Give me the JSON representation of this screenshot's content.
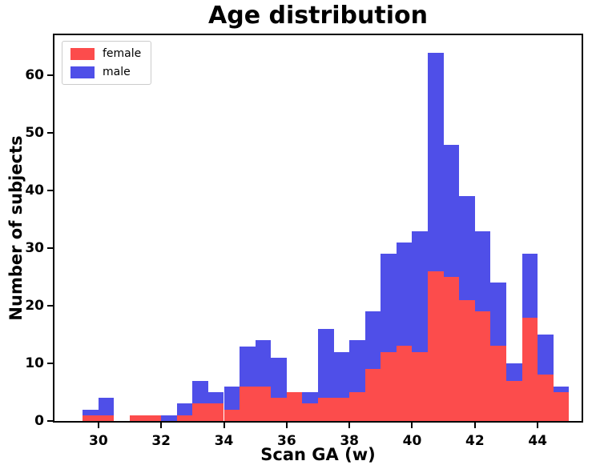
{
  "chart_data": {
    "type": "bar",
    "subtype": "stacked-histogram",
    "title": "Age distribution",
    "xlabel": "Scan GA (w)",
    "ylabel": "Number of subjects",
    "stacked": true,
    "grid": false,
    "legend_position": "upper left",
    "bin_width": 0.5,
    "bin_starts": [
      29.0,
      29.5,
      30.0,
      30.5,
      31.0,
      31.5,
      32.0,
      32.5,
      33.0,
      33.5,
      34.0,
      34.5,
      35.0,
      35.5,
      36.0,
      36.5,
      37.0,
      37.5,
      38.0,
      38.5,
      39.0,
      39.5,
      40.0,
      40.5,
      41.0,
      41.5,
      42.0,
      42.5,
      43.0,
      43.5,
      44.0,
      44.5
    ],
    "series": [
      {
        "name": "female",
        "color": "#fc4c4c",
        "values": [
          0,
          1,
          1,
          0,
          1,
          1,
          0,
          1,
          3,
          3,
          2,
          6,
          6,
          4,
          5,
          3,
          4,
          4,
          5,
          9,
          12,
          13,
          12,
          26,
          25,
          21,
          19,
          13,
          7,
          18,
          8,
          5
        ]
      },
      {
        "name": "male",
        "color": "#4f4fe8",
        "values": [
          0,
          1,
          3,
          0,
          0,
          0,
          1,
          2,
          4,
          2,
          4,
          7,
          8,
          7,
          0,
          2,
          12,
          8,
          9,
          10,
          17,
          18,
          21,
          38,
          23,
          18,
          14,
          11,
          3,
          11,
          7,
          1
        ]
      }
    ],
    "totals": [
      0,
      2,
      4,
      0,
      1,
      1,
      1,
      3,
      7,
      5,
      6,
      13,
      14,
      11,
      5,
      5,
      16,
      12,
      14,
      19,
      29,
      31,
      33,
      64,
      48,
      39,
      33,
      24,
      10,
      29,
      15,
      6
    ],
    "xlim": [
      28.6,
      45.4
    ],
    "ylim": [
      0,
      67
    ],
    "x_ticks": [
      30,
      32,
      34,
      36,
      38,
      40,
      42,
      44
    ],
    "y_ticks": [
      0,
      10,
      20,
      30,
      40,
      50,
      60
    ]
  }
}
